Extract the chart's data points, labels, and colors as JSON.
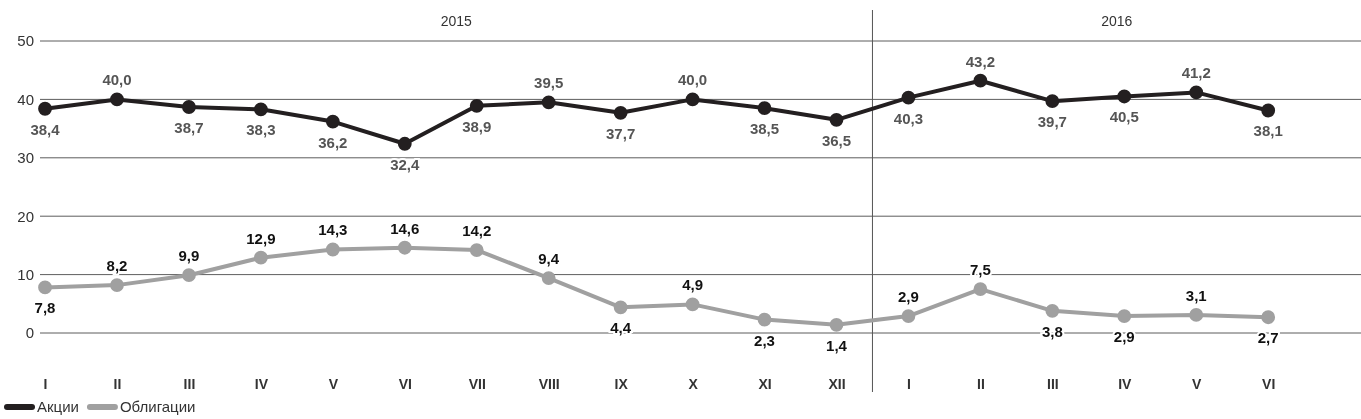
{
  "chart_data": {
    "type": "line",
    "categories": [
      "I",
      "II",
      "III",
      "IV",
      "V",
      "VI",
      "VII",
      "VIII",
      "IX",
      "X",
      "XI",
      "XII",
      "I",
      "II",
      "III",
      "IV",
      "V",
      "VI"
    ],
    "ylim": [
      0,
      50
    ],
    "yticks": [
      0,
      10,
      20,
      30,
      40,
      50
    ],
    "grid": "y",
    "marker": "circle",
    "line_style": "solid",
    "legend": "bottom left",
    "ref_lines": [
      {
        "axis": "x",
        "value": "XII",
        "color": "#555555"
      }
    ],
    "annotations": [
      "2015",
      "2016"
    ],
    "series": [
      {
        "name": "Акции",
        "color": "#231f20",
        "values": [
          38.4,
          40.0,
          38.7,
          38.3,
          36.2,
          32.4,
          38.9,
          39.5,
          37.7,
          40.0,
          38.5,
          36.5,
          40.3,
          43.2,
          39.7,
          40.5,
          41.2,
          38.1
        ],
        "value_labels": [
          "38,4",
          "40,0",
          "38,7",
          "38,3",
          "36,2",
          "32,4",
          "38,9",
          "39,5",
          "37,7",
          "40,0",
          "38,5",
          "36,5",
          "40,3",
          "43,2",
          "39,7",
          "40,5",
          "41,2",
          "38,1"
        ]
      },
      {
        "name": "Облигации",
        "color": "#a0a0a0",
        "values": [
          7.8,
          8.2,
          9.9,
          12.9,
          14.3,
          14.6,
          14.2,
          9.4,
          4.4,
          4.9,
          2.3,
          1.4,
          2.9,
          7.5,
          3.8,
          2.9,
          3.1,
          2.7
        ],
        "value_labels": [
          "7,8",
          "8,2",
          "9,9",
          "12,9",
          "14,3",
          "14,6",
          "14,2",
          "9,4",
          "4,4",
          "4,9",
          "2,3",
          "1,4",
          "2,9",
          "7,5",
          "3,8",
          "2,9",
          "3,1",
          "2,7"
        ]
      }
    ]
  }
}
